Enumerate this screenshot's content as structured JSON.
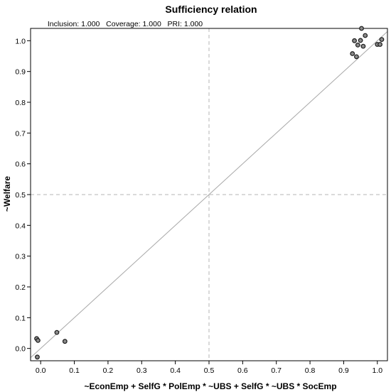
{
  "chart_data": {
    "type": "scatter",
    "title": "Sufficiency relation",
    "subtitle": "Inclusion: 1.000   Coverage: 1.000   PRI: 1.000",
    "xlabel": "~EconEmp + SelfG * PolEmp * ~UBS + SelfG * ~UBS * SocEmp",
    "ylabel": "~Welfare",
    "xlim": [
      -0.03,
      1.03
    ],
    "ylim": [
      -0.04,
      1.04
    ],
    "xticks": [
      "0.0",
      "0.1",
      "0.2",
      "0.3",
      "0.4",
      "0.5",
      "0.6",
      "0.7",
      "0.8",
      "0.9",
      "1.0"
    ],
    "yticks": [
      "0.0",
      "0.1",
      "0.2",
      "0.3",
      "0.4",
      "0.5",
      "0.6",
      "0.7",
      "0.8",
      "0.9",
      "1.0"
    ],
    "reference_lines": {
      "x": 0.5,
      "y": 0.5,
      "diagonal": true
    },
    "grid": false,
    "points": [
      {
        "x": -0.012,
        "y": 0.032
      },
      {
        "x": -0.008,
        "y": 0.026
      },
      {
        "x": -0.01,
        "y": -0.028
      },
      {
        "x": 0.048,
        "y": 0.052
      },
      {
        "x": 0.072,
        "y": 0.023
      },
      {
        "x": 0.926,
        "y": 0.958
      },
      {
        "x": 0.932,
        "y": 1.0
      },
      {
        "x": 0.938,
        "y": 0.948
      },
      {
        "x": 0.942,
        "y": 0.986
      },
      {
        "x": 0.95,
        "y": 1.001
      },
      {
        "x": 0.953,
        "y": 1.04
      },
      {
        "x": 0.958,
        "y": 0.982
      },
      {
        "x": 0.964,
        "y": 1.017
      },
      {
        "x": 1.0,
        "y": 0.988
      },
      {
        "x": 1.008,
        "y": 0.988
      },
      {
        "x": 1.013,
        "y": 1.004
      }
    ],
    "point_fill": "#8c8c8c",
    "point_stroke": "#1a1a1a",
    "reference_color": "#b5b5b5"
  }
}
